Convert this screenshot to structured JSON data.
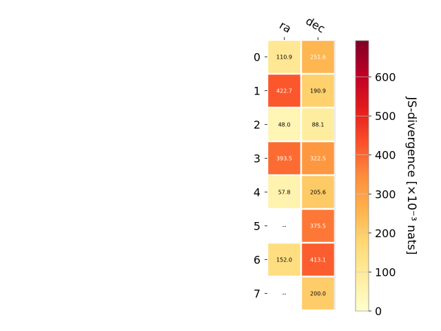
{
  "chart_data": {
    "type": "heatmap",
    "title": "",
    "columns": [
      "ra",
      "dec"
    ],
    "rows": [
      "0",
      "1",
      "2",
      "3",
      "4",
      "5",
      "6",
      "7"
    ],
    "values": [
      [
        110.9,
        251.6
      ],
      [
        422.7,
        190.9
      ],
      [
        48.0,
        88.1
      ],
      [
        393.5,
        322.5
      ],
      [
        57.8,
        205.6
      ],
      [
        null,
        375.5
      ],
      [
        152.0,
        413.1
      ],
      [
        null,
        200.0
      ]
    ],
    "missing_label": "--",
    "colorbar": {
      "label": "JS-divergence [×10⁻³ nats]",
      "range": [
        0,
        693
      ],
      "ticks": [
        0,
        100,
        200,
        300,
        400,
        500,
        600
      ],
      "tick_labels": [
        "0",
        "100",
        "200",
        "300",
        "400",
        "500",
        "600"
      ],
      "colormap": "YlOrRd"
    }
  }
}
